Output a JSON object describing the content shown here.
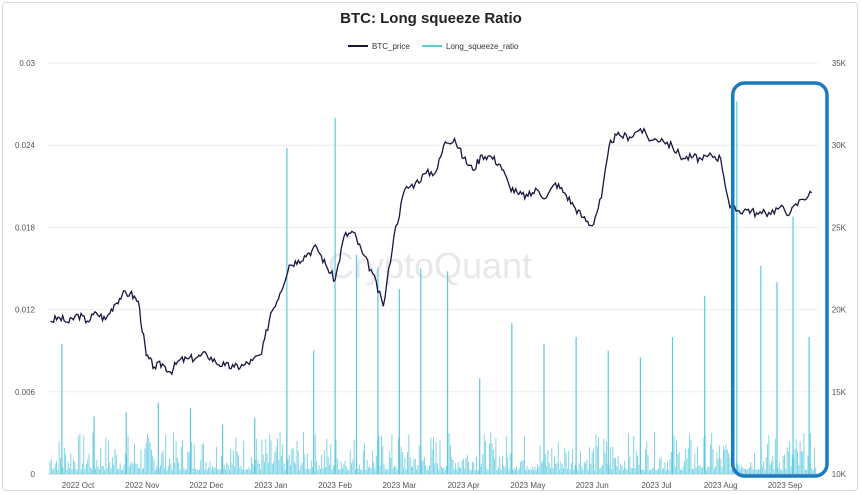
{
  "chart_data": {
    "type": "line",
    "title": "BTC: Long squeeze Ratio",
    "watermark": "CryptoQuant",
    "x_ticks": [
      "2022 Oct",
      "2022 Nov",
      "2022 Dec",
      "2023 Jan",
      "2023 Feb",
      "2023 Mar",
      "2023 Apr",
      "2023 May",
      "2023 Jun",
      "2023 Jul",
      "2023 Aug",
      "2023 Sep"
    ],
    "y_left": {
      "ticks": [
        "0",
        "0.006",
        "0.012",
        "0.018",
        "0.024",
        "0.03"
      ],
      "range": [
        0,
        0.03
      ]
    },
    "y_right": {
      "ticks": [
        "10K",
        "15K",
        "20K",
        "25K",
        "30K",
        "35K"
      ],
      "range": [
        10000,
        35000
      ]
    },
    "legend_position": "top-center",
    "grid": "horizontal",
    "highlight_box": {
      "from": "2023 Aug",
      "to": "2023 Sep",
      "color": "#1a7cc0"
    },
    "series": [
      {
        "name": "BTC_price",
        "axis": "right",
        "color": "#1b1440",
        "points": [
          [
            "2022 Oct",
            19300
          ],
          [
            "2022 Oct",
            19500
          ],
          [
            "2022 Oct",
            19200
          ],
          [
            "2022 Oct",
            19700
          ],
          [
            "2022 Oct",
            19300
          ],
          [
            "2022 Oct",
            19800
          ],
          [
            "2022 Oct",
            19400
          ],
          [
            "2022 Nov",
            20300
          ],
          [
            "2022 Nov",
            20900
          ],
          [
            "2022 Nov",
            21000
          ],
          [
            "2022 Nov",
            20500
          ],
          [
            "2022 Nov",
            17200
          ],
          [
            "2022 Nov",
            16500
          ],
          [
            "2022 Nov",
            16700
          ],
          [
            "2022 Nov",
            16200
          ],
          [
            "2022 Dec",
            16900
          ],
          [
            "2022 Dec",
            17000
          ],
          [
            "2022 Dec",
            17100
          ],
          [
            "2022 Dec",
            17300
          ],
          [
            "2022 Dec",
            16800
          ],
          [
            "2022 Dec",
            16600
          ],
          [
            "2022 Dec",
            16500
          ],
          [
            "2023 Jan",
            16600
          ],
          [
            "2023 Jan",
            16900
          ],
          [
            "2023 Jan",
            17300
          ],
          [
            "2023 Jan",
            19800
          ],
          [
            "2023 Jan",
            21000
          ],
          [
            "2023 Jan",
            22700
          ],
          [
            "2023 Jan",
            23000
          ],
          [
            "2023 Feb",
            23400
          ],
          [
            "2023 Feb",
            23800
          ],
          [
            "2023 Feb",
            22700
          ],
          [
            "2023 Feb",
            21800
          ],
          [
            "2023 Feb",
            24500
          ],
          [
            "2023 Feb",
            24700
          ],
          [
            "2023 Feb",
            23400
          ],
          [
            "2023 Mar",
            22200
          ],
          [
            "2023 Mar",
            20200
          ],
          [
            "2023 Mar",
            24500
          ],
          [
            "2023 Mar",
            27300
          ],
          [
            "2023 Mar",
            27700
          ],
          [
            "2023 Mar",
            28300
          ],
          [
            "2023 Apr",
            28400
          ],
          [
            "2023 Apr",
            30200
          ],
          [
            "2023 Apr",
            30400
          ],
          [
            "2023 Apr",
            29200
          ],
          [
            "2023 Apr",
            28500
          ],
          [
            "2023 Apr",
            29400
          ],
          [
            "2023 Apr",
            29300
          ],
          [
            "2023 May",
            28800
          ],
          [
            "2023 May",
            27500
          ],
          [
            "2023 May",
            27000
          ],
          [
            "2023 May",
            26900
          ],
          [
            "2023 May",
            27300
          ],
          [
            "2023 May",
            26800
          ],
          [
            "2023 May",
            27700
          ],
          [
            "2023 Jun",
            27100
          ],
          [
            "2023 Jun",
            26300
          ],
          [
            "2023 Jun",
            25600
          ],
          [
            "2023 Jun",
            25100
          ],
          [
            "2023 Jun",
            26800
          ],
          [
            "2023 Jun",
            30300
          ],
          [
            "2023 Jun",
            30600
          ],
          [
            "2023 Jul",
            30500
          ],
          [
            "2023 Jul",
            31000
          ],
          [
            "2023 Jul",
            30300
          ],
          [
            "2023 Jul",
            30400
          ],
          [
            "2023 Jul",
            29900
          ],
          [
            "2023 Jul",
            29200
          ],
          [
            "2023 Aug",
            29300
          ],
          [
            "2023 Aug",
            29100
          ],
          [
            "2023 Aug",
            29400
          ],
          [
            "2023 Aug",
            29200
          ],
          [
            "2023 Aug",
            26200
          ],
          [
            "2023 Aug",
            26000
          ],
          [
            "2023 Aug",
            26100
          ],
          [
            "2023 Sep",
            25800
          ],
          [
            "2023 Sep",
            25900
          ],
          [
            "2023 Sep",
            26200
          ],
          [
            "2023 Sep",
            25900
          ],
          [
            "2023 Sep",
            26700
          ],
          [
            "2023 Sep",
            27100
          ]
        ]
      },
      {
        "name": "Long_squeeze_ratio",
        "axis": "left",
        "color": "#5bc8e0",
        "spikes": [
          [
            "2022 Oct",
            0.0095
          ],
          [
            "2022 Oct",
            0.0042
          ],
          [
            "2022 Nov",
            0.0045
          ],
          [
            "2022 Nov",
            0.0052
          ],
          [
            "2022 Dec",
            0.0048
          ],
          [
            "2022 Dec",
            0.0036
          ],
          [
            "2023 Jan",
            0.0041
          ],
          [
            "2023 Jan",
            0.0238
          ],
          [
            "2023 Feb",
            0.009
          ],
          [
            "2023 Feb",
            0.026
          ],
          [
            "2023 Feb",
            0.016
          ],
          [
            "2023 Mar",
            0.015
          ],
          [
            "2023 Mar",
            0.0135
          ],
          [
            "2023 Mar",
            0.015
          ],
          [
            "2023 Apr",
            0.0148
          ],
          [
            "2023 Apr",
            0.007
          ],
          [
            "2023 May",
            0.011
          ],
          [
            "2023 May",
            0.0095
          ],
          [
            "2023 Jun",
            0.01
          ],
          [
            "2023 Jun",
            0.009
          ],
          [
            "2023 Jul",
            0.0085
          ],
          [
            "2023 Jul",
            0.01
          ],
          [
            "2023 Aug",
            0.013
          ],
          [
            "2023 Aug",
            0.0272
          ],
          [
            "2023 Sep",
            0.0152
          ],
          [
            "2023 Sep",
            0.014
          ],
          [
            "2023 Sep",
            0.0188
          ],
          [
            "2023 Sep",
            0.01
          ]
        ]
      }
    ]
  }
}
